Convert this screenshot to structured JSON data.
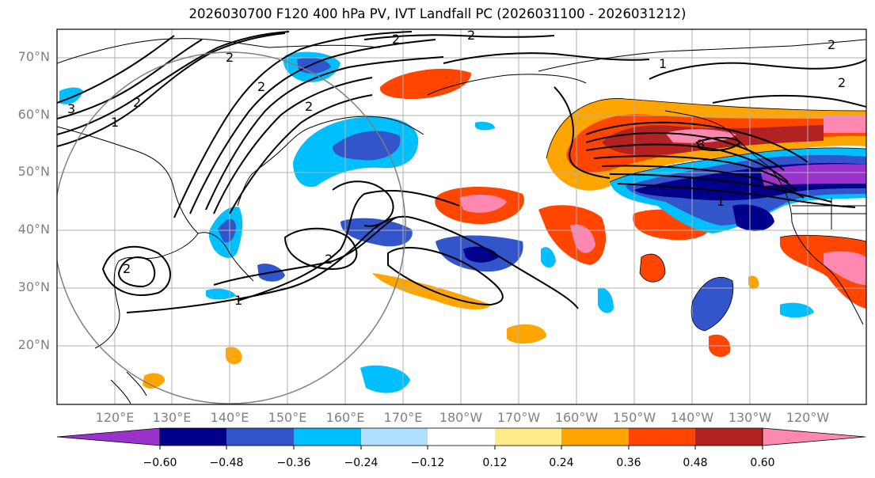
{
  "title": "2026030700 F120 400 hPa PV, IVT Landfall PC (2026031100 - 2026031212)",
  "lat_labels": [
    "70°N",
    "60°N",
    "50°N",
    "40°N",
    "30°N",
    "20°N"
  ],
  "lon_labels": [
    "120°E",
    "130°E",
    "140°E",
    "150°E",
    "160°E",
    "170°E",
    "180°W",
    "170°W",
    "160°W",
    "150°W",
    "140°W",
    "130°W",
    "120°W"
  ],
  "contour_labels": [
    "2",
    "2",
    "1",
    "2",
    "3",
    "2",
    "2",
    "1",
    "2",
    "2",
    "3",
    "2",
    "2",
    "1",
    "2",
    "1"
  ],
  "colorbar": {
    "ticks": [
      "−0.60",
      "−0.48",
      "−0.36",
      "−0.24",
      "−0.12",
      "0.12",
      "0.24",
      "0.36",
      "0.48",
      "0.60"
    ],
    "colors": [
      "#9933cc",
      "#00008b",
      "#3355cc",
      "#00bfff",
      "#b0e0ff",
      "#ffffff",
      "#ffeb8a",
      "#ffa500",
      "#ff4500",
      "#b22222",
      "#ff88b0"
    ]
  },
  "palette": {
    "neg_strong": "#00008b",
    "neg_mid": "#3355cc",
    "neg_light": "#00bfff",
    "neg_pale": "#b0e0ff",
    "pos_pale": "#ffeb8a",
    "pos_light": "#ffa500",
    "pos_mid": "#ff4500",
    "pos_strong": "#b22222",
    "pos_max": "#ff88b0",
    "neg_max": "#9933cc"
  }
}
